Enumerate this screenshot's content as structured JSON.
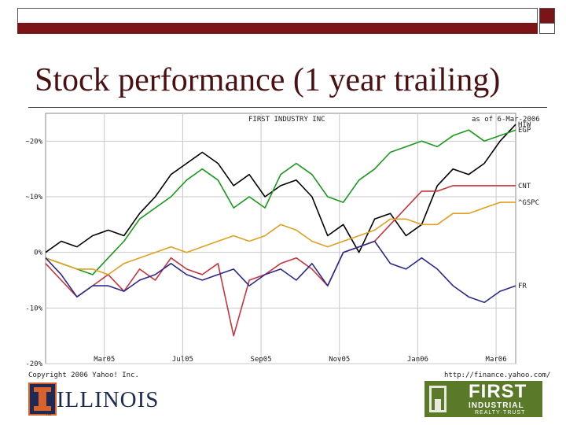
{
  "slide": {
    "title": "Stock performance (1 year trailing)",
    "footer_copyright": "Copyright 2006 Yahoo! Inc.",
    "footer_url": "http://finance.yahoo.com/",
    "logo_illinois": {
      "word": "ILLINOIS",
      "tm": "TM"
    },
    "logo_first": {
      "line1": "FIRST",
      "line2": "INDUSTRIAL",
      "line3": "REALTY·TRUST"
    },
    "colors": {
      "title": "#4a1012",
      "band": "#7a1416"
    }
  },
  "chart_data": {
    "type": "line",
    "title": "FIRST INDUSTRY INC",
    "subtitle": "as of 6-Mar-2006",
    "ylim": [
      -20,
      25
    ],
    "y_ticks": [
      20,
      10,
      0,
      -10,
      -20
    ],
    "y_tick_labels": [
      "~20%",
      "~10%",
      "0%",
      "-10%",
      "-20%"
    ],
    "x_range": [
      0,
      12
    ],
    "x_ticks": [
      1.5,
      3.5,
      5.5,
      7.5,
      9.5,
      11.5
    ],
    "x_tick_labels": [
      "Mar05",
      "Jul05",
      "Sep05",
      "Nov05",
      "Jan06",
      "Mar06"
    ],
    "grid": true,
    "series": [
      {
        "name": "HIW",
        "color": "#000000",
        "x": [
          0,
          0.4,
          0.8,
          1.2,
          1.6,
          2.0,
          2.4,
          2.8,
          3.2,
          3.6,
          4.0,
          4.4,
          4.8,
          5.2,
          5.6,
          6.0,
          6.4,
          6.8,
          7.2,
          7.6,
          8.0,
          8.4,
          8.8,
          9.2,
          9.6,
          10.0,
          10.4,
          10.8,
          11.2,
          11.6,
          12.0
        ],
        "values": [
          0,
          2,
          1,
          3,
          4,
          3,
          7,
          10,
          14,
          16,
          18,
          16,
          12,
          14,
          10,
          12,
          13,
          10,
          3,
          5,
          0,
          6,
          7,
          3,
          5,
          12,
          15,
          14,
          16,
          20,
          23
        ]
      },
      {
        "name": "EGP",
        "color": "#1a9a1a",
        "x": [
          0,
          0.4,
          0.8,
          1.2,
          1.6,
          2.0,
          2.4,
          2.8,
          3.2,
          3.6,
          4.0,
          4.4,
          4.8,
          5.2,
          5.6,
          6.0,
          6.4,
          6.8,
          7.2,
          7.6,
          8.0,
          8.4,
          8.8,
          9.2,
          9.6,
          10.0,
          10.4,
          10.8,
          11.2,
          11.6,
          12.0
        ],
        "values": [
          -1,
          -2,
          -3,
          -4,
          -1,
          2,
          6,
          8,
          10,
          13,
          15,
          13,
          8,
          10,
          8,
          14,
          16,
          14,
          10,
          9,
          13,
          15,
          18,
          19,
          20,
          19,
          21,
          22,
          20,
          21,
          22
        ]
      },
      {
        "name": "CNT",
        "color": "#c8343a",
        "x": [
          0,
          0.4,
          0.8,
          1.2,
          1.6,
          2.0,
          2.4,
          2.8,
          3.2,
          3.6,
          4.0,
          4.4,
          4.8,
          5.2,
          5.6,
          6.0,
          6.4,
          6.8,
          7.2,
          7.6,
          8.0,
          8.4,
          8.8,
          9.2,
          9.6,
          10.0,
          10.4,
          10.8,
          11.2,
          11.6,
          12.0
        ],
        "values": [
          -2,
          -5,
          -8,
          -6,
          -4,
          -7,
          -3,
          -5,
          -1,
          -3,
          -4,
          -2,
          -15,
          -5,
          -4,
          -2,
          -1,
          -3,
          -6,
          0,
          1,
          2,
          5,
          8,
          11,
          11,
          12,
          12,
          12,
          12,
          12
        ]
      },
      {
        "name": "^GSPC",
        "color": "#e0a020",
        "x": [
          0,
          0.4,
          0.8,
          1.2,
          1.6,
          2.0,
          2.4,
          2.8,
          3.2,
          3.6,
          4.0,
          4.4,
          4.8,
          5.2,
          5.6,
          6.0,
          6.4,
          6.8,
          7.2,
          7.6,
          8.0,
          8.4,
          8.8,
          9.2,
          9.6,
          10.0,
          10.4,
          10.8,
          11.2,
          11.6,
          12.0
        ],
        "values": [
          -1,
          -2,
          -3,
          -3,
          -4,
          -2,
          -1,
          0,
          1,
          0,
          1,
          2,
          3,
          2,
          3,
          5,
          4,
          2,
          1,
          2,
          3,
          4,
          6,
          6,
          5,
          5,
          7,
          7,
          8,
          9,
          9
        ]
      },
      {
        "name": "FR",
        "color": "#2a2a8a",
        "x": [
          0,
          0.4,
          0.8,
          1.2,
          1.6,
          2.0,
          2.4,
          2.8,
          3.2,
          3.6,
          4.0,
          4.4,
          4.8,
          5.2,
          5.6,
          6.0,
          6.4,
          6.8,
          7.2,
          7.6,
          8.0,
          8.4,
          8.8,
          9.2,
          9.6,
          10.0,
          10.4,
          10.8,
          11.2,
          11.6,
          12.0
        ],
        "values": [
          -1,
          -4,
          -8,
          -6,
          -6,
          -7,
          -5,
          -4,
          -2,
          -4,
          -5,
          -4,
          -3,
          -6,
          -4,
          -3,
          -5,
          -2,
          -6,
          0,
          1,
          2,
          -2,
          -3,
          -1,
          -3,
          -6,
          -8,
          -9,
          -7,
          -6
        ]
      }
    ]
  }
}
